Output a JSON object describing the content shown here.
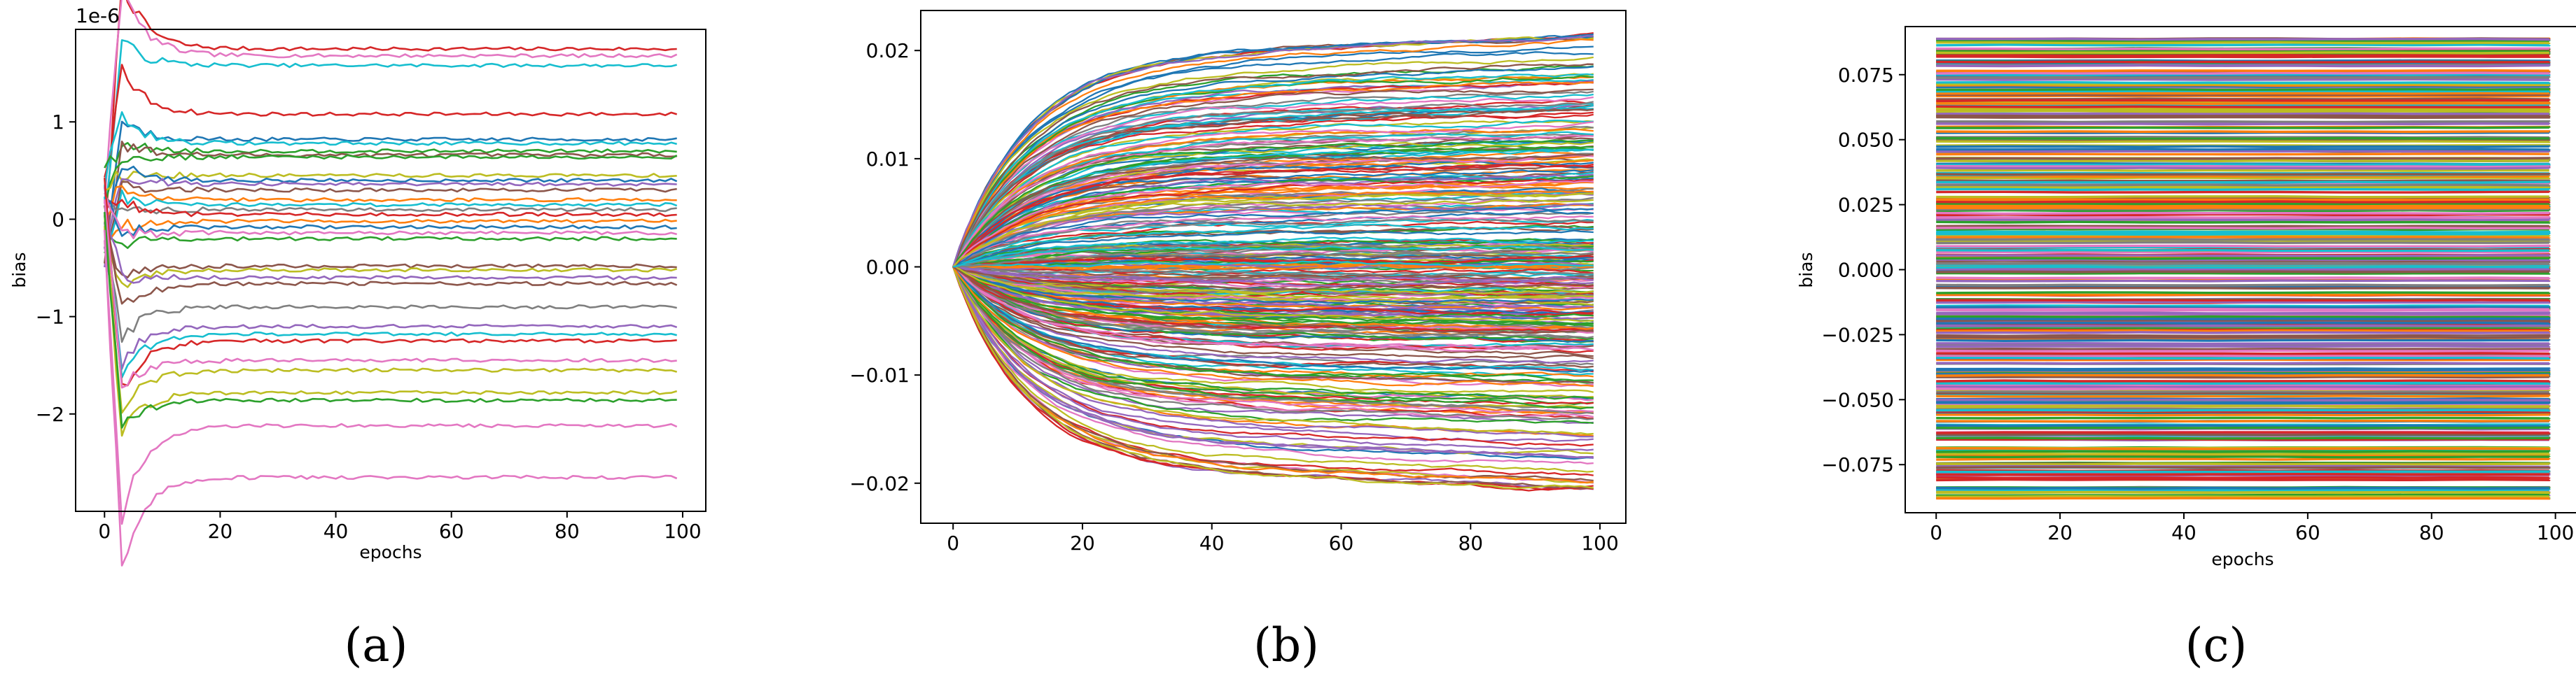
{
  "chart_data": [
    {
      "type": "line",
      "caption": "(a)",
      "xlabel": "epochs",
      "ylabel": "bias",
      "offset_label": "1e-6",
      "xlim": [
        -5,
        104
      ],
      "ylim": [
        -3e-06,
        1.95e-06
      ],
      "xticks": [
        0,
        20,
        40,
        60,
        80,
        100
      ],
      "xtick_labels": [
        "0",
        "20",
        "40",
        "60",
        "80",
        "100"
      ],
      "yticks": [
        -2e-06,
        -1e-06,
        0,
        1e-06
      ],
      "ytick_labels": [
        "−2",
        "−1",
        "0",
        "1"
      ],
      "epochs": [
        0,
        99
      ],
      "series_final_values": [
        1.75e-06,
        1.68e-06,
        1.58e-06,
        1.08e-06,
        8.2e-07,
        7.8e-07,
        7e-07,
        6.6e-07,
        6.4e-07,
        4.5e-07,
        4e-07,
        3.6e-07,
        3e-07,
        2e-07,
        1.5e-07,
        1e-07,
        5e-08,
        -2e-08,
        -8e-08,
        -1.4e-07,
        -2e-07,
        -4.8e-07,
        -5.2e-07,
        -6e-07,
        -6.6e-07,
        -9e-07,
        -1.1e-06,
        -1.18e-06,
        -1.25e-06,
        -1.45e-06,
        -1.55e-06,
        -1.78e-06,
        -1.86e-06,
        -2.12e-06,
        -2.65e-06
      ],
      "grid": false,
      "legend": "none"
    },
    {
      "type": "line",
      "caption": "(b)",
      "xlabel": "",
      "ylabel": "",
      "xlim": [
        -5,
        104
      ],
      "ylim": [
        -0.0237,
        0.0237
      ],
      "xticks": [
        0,
        20,
        40,
        60,
        80,
        100
      ],
      "xtick_labels": [
        "0",
        "20",
        "40",
        "60",
        "80",
        "100"
      ],
      "yticks": [
        -0.02,
        -0.01,
        0.0,
        0.01,
        0.02
      ],
      "ytick_labels": [
        "−0.02",
        "−0.01",
        "0.00",
        "0.01",
        "0.02"
      ],
      "epochs": [
        0,
        99
      ],
      "series_start_value": 0.0,
      "series_final_range": [
        -0.0205,
        0.0213
      ],
      "series_count": 300,
      "grid": false,
      "legend": "none"
    },
    {
      "type": "line",
      "caption": "(c)",
      "xlabel": "epochs",
      "ylabel": "bias",
      "xlim": [
        -5,
        104
      ],
      "ylim": [
        -0.0935,
        0.0935
      ],
      "xticks": [
        0,
        20,
        40,
        60,
        80,
        100
      ],
      "xtick_labels": [
        "0",
        "20",
        "40",
        "60",
        "80",
        "100"
      ],
      "yticks": [
        -0.075,
        -0.05,
        -0.025,
        0.0,
        0.025,
        0.05,
        0.075
      ],
      "ytick_labels": [
        "−0.075",
        "−0.050",
        "−0.025",
        "0.000",
        "0.025",
        "0.050",
        "0.075"
      ],
      "epochs": [
        0,
        99
      ],
      "series_value_range": [
        -0.088,
        0.089
      ],
      "series_count": 400,
      "grid": false,
      "legend": "none"
    }
  ],
  "palette": [
    "#1f77b4",
    "#ff7f0e",
    "#2ca02c",
    "#d62728",
    "#9467bd",
    "#8c564b",
    "#e377c2",
    "#7f7f7f",
    "#bcbd22",
    "#17becf"
  ]
}
